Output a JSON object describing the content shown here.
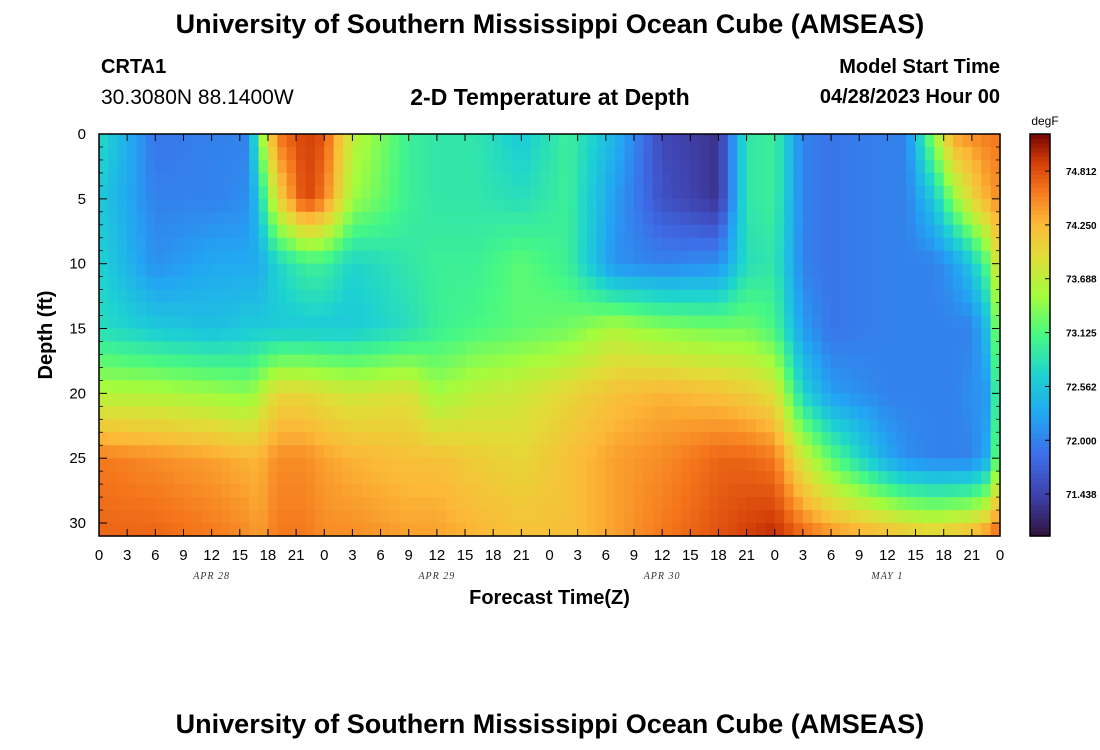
{
  "header": {
    "title": "University of Southern Mississippi Ocean Cube (AMSEAS)",
    "station": "CRTA1",
    "coords": "30.3080N  88.1400W",
    "subtitle": "2-D Temperature at Depth",
    "start_label": "Model Start Time",
    "start_value": "04/28/2023 Hour 00"
  },
  "footer": {
    "title": "University of Southern Mississippi Ocean Cube (AMSEAS)"
  },
  "chart_data": {
    "type": "heatmap",
    "title": "2-D Temperature at Depth",
    "xlabel": "Forecast Time(Z)",
    "ylabel": "Depth (ft)",
    "x_hours": [
      0,
      96
    ],
    "x_tick_labels": [
      "0",
      "3",
      "6",
      "9",
      "12",
      "15",
      "18",
      "21",
      "0",
      "3",
      "6",
      "9",
      "12",
      "15",
      "18",
      "21",
      "0",
      "3",
      "6",
      "9",
      "12",
      "15",
      "18",
      "21",
      "0",
      "3",
      "6",
      "9",
      "12",
      "15",
      "18",
      "21",
      "0"
    ],
    "date_labels": [
      "APR 28",
      "APR 29",
      "APR 30",
      "MAY 1"
    ],
    "date_label_hours": [
      12,
      36,
      60,
      84
    ],
    "y_range": [
      0,
      31
    ],
    "y_ticks": [
      0,
      5,
      10,
      15,
      20,
      25,
      30
    ],
    "colorbar": {
      "unit": "degF",
      "range": [
        71.0,
        75.2
      ],
      "tick_values": [
        71.438,
        72.0,
        72.562,
        73.125,
        73.688,
        74.25,
        74.812
      ],
      "tick_labels": [
        "71.438",
        "72.000",
        "72.562",
        "73.125",
        "73.688",
        "74.250",
        "74.812"
      ]
    },
    "depths_ft": [
      0,
      5,
      10,
      15,
      20,
      25,
      31
    ],
    "temperature_hours": [
      0,
      6,
      12,
      16,
      17,
      19,
      22,
      24,
      27,
      33,
      36,
      40,
      45,
      50,
      55,
      60,
      66,
      69,
      72,
      75,
      78,
      84,
      86,
      89,
      91,
      93,
      95,
      96
    ],
    "temperature_degF": [
      [
        72.8,
        71.9,
        72.0,
        72.0,
        73.3,
        74.6,
        74.9,
        74.8,
        73.7,
        73.0,
        72.9,
        72.9,
        72.6,
        73.0,
        72.4,
        71.5,
        71.3,
        72.9,
        73.0,
        72.0,
        71.9,
        72.0,
        72.0,
        73.5,
        74.4,
        74.5,
        74.6,
        74.6
      ],
      [
        72.6,
        72.0,
        72.0,
        72.1,
        72.6,
        74.0,
        74.9,
        74.6,
        73.5,
        73.0,
        72.9,
        72.9,
        72.8,
        73.0,
        72.2,
        71.6,
        71.3,
        72.9,
        73.0,
        72.0,
        71.9,
        72.0,
        72.0,
        72.6,
        73.4,
        74.0,
        74.4,
        74.5
      ],
      [
        72.7,
        72.1,
        72.3,
        72.3,
        72.3,
        72.7,
        73.0,
        73.0,
        72.7,
        72.9,
        73.0,
        73.0,
        73.2,
        73.0,
        72.1,
        72.0,
        72.1,
        72.8,
        72.9,
        72.0,
        71.9,
        72.0,
        72.0,
        72.0,
        72.2,
        72.6,
        73.3,
        74.2
      ],
      [
        72.8,
        72.6,
        72.5,
        72.6,
        72.6,
        72.6,
        72.6,
        72.6,
        72.6,
        72.8,
        73.0,
        73.1,
        73.2,
        73.3,
        73.6,
        73.4,
        73.3,
        73.3,
        73.1,
        72.2,
        71.9,
        72.0,
        72.0,
        72.0,
        72.0,
        72.0,
        72.6,
        73.8
      ],
      [
        73.6,
        73.6,
        73.5,
        73.4,
        73.6,
        74.0,
        74.0,
        73.9,
        73.8,
        73.9,
        73.5,
        73.7,
        73.8,
        74.0,
        74.2,
        74.3,
        74.2,
        74.1,
        73.9,
        72.7,
        72.2,
        72.0,
        72.0,
        72.0,
        72.0,
        72.1,
        72.2,
        73.6
      ],
      [
        74.6,
        74.5,
        74.4,
        74.3,
        74.3,
        74.5,
        74.5,
        74.4,
        74.3,
        74.2,
        74.2,
        74.1,
        74.0,
        74.2,
        74.4,
        74.5,
        74.7,
        74.7,
        74.6,
        73.8,
        73.2,
        72.3,
        72.1,
        72.0,
        72.0,
        72.0,
        72.4,
        73.8
      ],
      [
        74.7,
        74.7,
        74.6,
        74.5,
        74.4,
        74.6,
        74.6,
        74.5,
        74.5,
        74.4,
        74.4,
        74.3,
        74.2,
        74.2,
        74.4,
        74.6,
        74.8,
        74.9,
        75.0,
        74.7,
        74.5,
        74.3,
        74.2,
        74.1,
        74.2,
        74.3,
        74.6,
        74.8
      ]
    ]
  }
}
